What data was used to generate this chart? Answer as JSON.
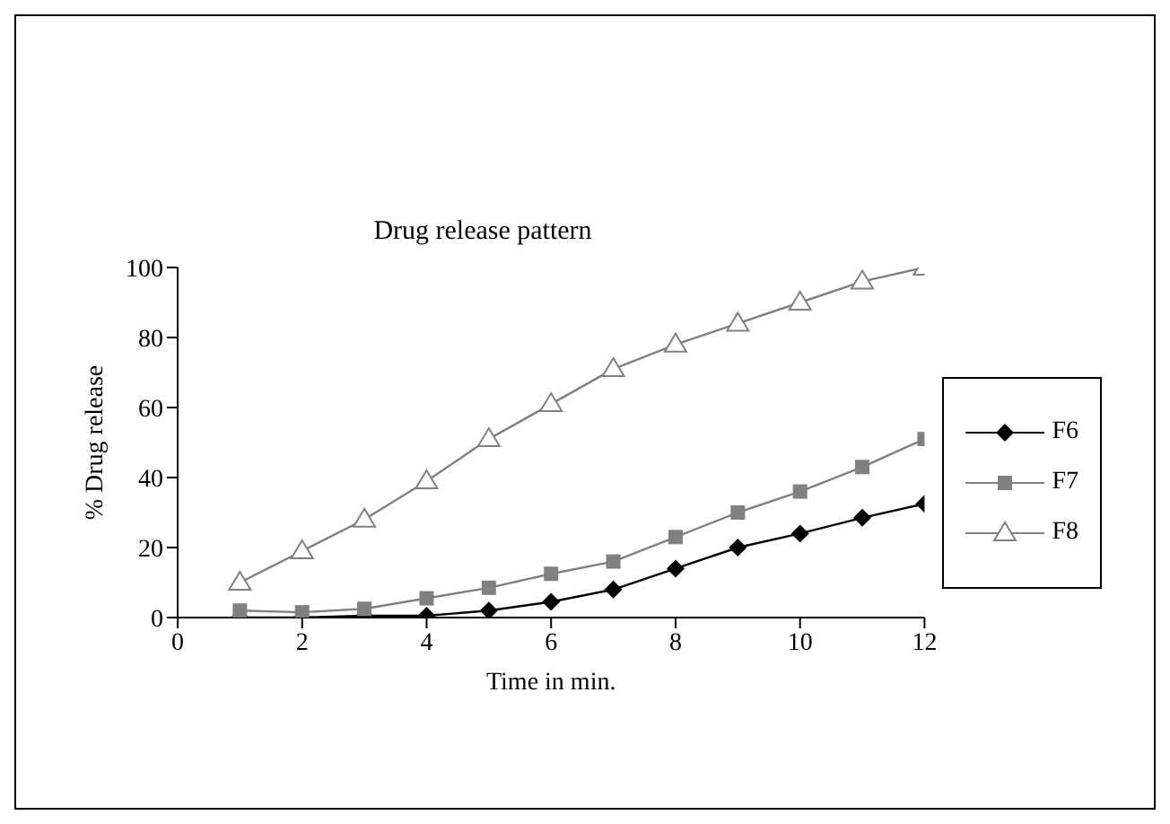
{
  "chart_data": {
    "type": "line",
    "title": "Drug release pattern",
    "xlabel": "Time in min.",
    "ylabel": "% Drug release",
    "x": [
      1,
      2,
      3,
      4,
      5,
      6,
      7,
      8,
      9,
      10,
      11,
      12
    ],
    "series": [
      {
        "name": "F6",
        "color": "#000000",
        "marker": "diamond",
        "values": [
          0,
          0,
          0.5,
          0.5,
          2,
          4.5,
          8,
          14,
          20,
          24,
          28.5,
          32.5
        ]
      },
      {
        "name": "F7",
        "color": "#808080",
        "marker": "square",
        "values": [
          2,
          1.5,
          2.5,
          5.5,
          8.5,
          12.5,
          16,
          23,
          30,
          36,
          43,
          51
        ]
      },
      {
        "name": "F8",
        "color": "#808080",
        "marker": "triangle",
        "values": [
          10,
          19,
          28,
          39,
          51,
          61,
          71,
          78,
          84,
          90,
          96,
          100
        ]
      }
    ],
    "xlim": [
      0,
      12
    ],
    "xticks": [
      0,
      2,
      4,
      6,
      8,
      10,
      12
    ],
    "ylim": [
      0,
      100
    ],
    "yticks": [
      0,
      20,
      40,
      60,
      80,
      100
    ],
    "grid": false,
    "legend": "right"
  }
}
